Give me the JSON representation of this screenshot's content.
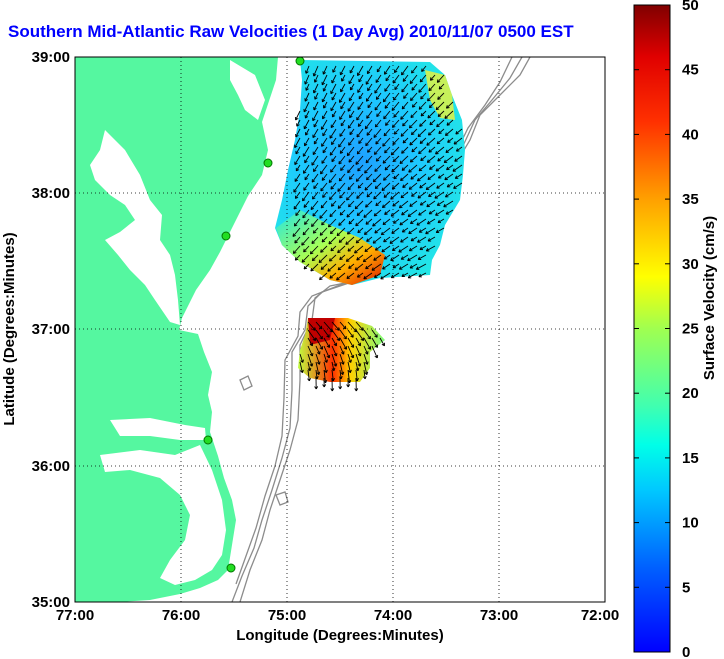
{
  "title": "Southern Mid-Atlantic Raw Velocities (1 Day Avg) 2010/11/07 0500 EST",
  "map": {
    "xlabel": "Longitude (Degrees:Minutes)",
    "ylabel": "Latitude (Degrees:Minutes)",
    "x_ticks": [
      "77:00",
      "76:00",
      "75:00",
      "74:00",
      "73:00",
      "72:00"
    ],
    "y_ticks": [
      "39:00",
      "38:00",
      "37:00",
      "36:00",
      "35:00"
    ],
    "lon_range": [
      -77,
      -72
    ],
    "lat_range": [
      35,
      39
    ],
    "grid": true,
    "land_color": "#55f7a0",
    "water_color": "#ffffff",
    "bathymetry_color": "#8c8c8c",
    "station_color": "#22dd22"
  },
  "colorbar": {
    "label": "Surface Velocity (cm/s)",
    "ticks": [
      "0",
      "5",
      "10",
      "15",
      "20",
      "25",
      "30",
      "35",
      "40",
      "45",
      "50"
    ],
    "min": 0,
    "max": 50
  }
}
